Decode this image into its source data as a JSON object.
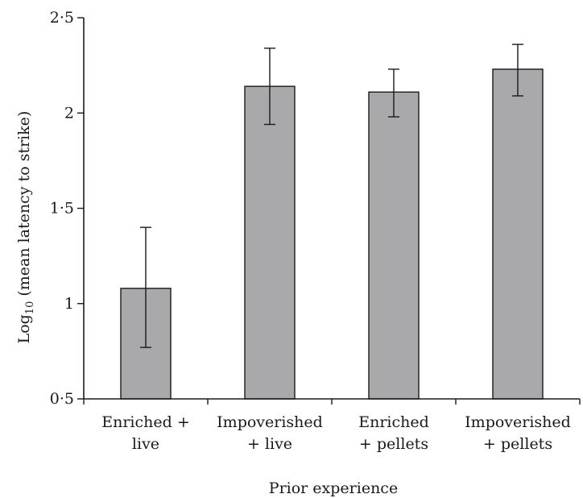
{
  "chart_data": {
    "type": "bar",
    "categories": [
      [
        "Enriched +",
        "live"
      ],
      [
        "Impoverished",
        "+ live"
      ],
      [
        "Enriched",
        "+ pellets"
      ],
      [
        "Impoverished",
        "+ pellets"
      ]
    ],
    "values": [
      1.08,
      2.14,
      2.11,
      2.23
    ],
    "error_low": [
      0.77,
      1.94,
      1.98,
      2.09
    ],
    "error_high": [
      1.4,
      2.34,
      2.23,
      2.36
    ],
    "xlabel": "Prior experience",
    "ylabel": {
      "prefix": "Log",
      "subscript": "10",
      "suffix": " (mean latency to strike)"
    },
    "ylim": [
      0.5,
      2.5
    ],
    "yticks": [
      0.5,
      1,
      1.5,
      2,
      2.5
    ],
    "ytick_labels": [
      "0·5",
      "1",
      "1·5",
      "2",
      "2·5"
    ],
    "grid": false,
    "bar_color": "#a9a9ab",
    "edge_color": "#1a1a1a"
  }
}
